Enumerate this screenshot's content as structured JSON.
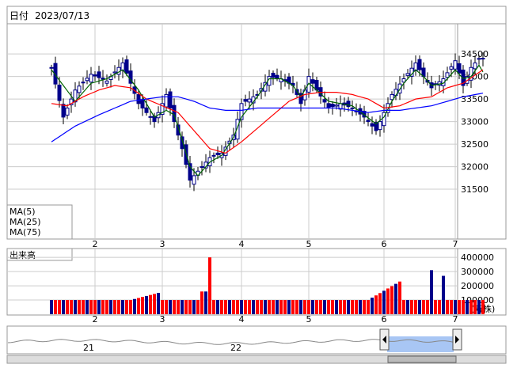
{
  "header": {
    "label": "日付",
    "date": "2023/07/13"
  },
  "colors": {
    "bull": "#ff0000",
    "bear": "#00008b",
    "wick": "#000000",
    "ma5": "#006400",
    "ma25": "#ff0000",
    "ma75": "#0000ff",
    "grid": "#cccccc",
    "volume_up": "#ff0000",
    "volume_down": "#00008b",
    "nav_fill": "#a8c6f4"
  },
  "legend": [
    {
      "label": "MA(5)",
      "color": "#006400"
    },
    {
      "label": "MA(25)",
      "color": "#ff0000"
    },
    {
      "label": "MA(75)",
      "color": "#0000ff"
    }
  ],
  "volume_panel": {
    "title": "出来高",
    "unit": "(万株)"
  },
  "navigator": {
    "labels": [
      "21",
      "22"
    ]
  },
  "chart_data": [
    {
      "type": "candlestick",
      "title": "",
      "y_ticks": [
        31500,
        32000,
        32500,
        33000,
        33500,
        34000,
        34500
      ],
      "ylim": [
        30500,
        35100
      ],
      "x_month_labels": [
        {
          "label": "2",
          "index": 11
        },
        {
          "label": "3",
          "index": 28
        },
        {
          "label": "4",
          "index": 48
        },
        {
          "label": "5",
          "index": 65
        },
        {
          "label": "6",
          "index": 84
        },
        {
          "label": "7",
          "index": 102
        }
      ],
      "anchors": {
        "close": [
          [
            0,
            34200
          ],
          [
            3,
            33100
          ],
          [
            6,
            33700
          ],
          [
            10,
            34050
          ],
          [
            14,
            33900
          ],
          [
            18,
            34300
          ],
          [
            22,
            33400
          ],
          [
            26,
            33000
          ],
          [
            29,
            33600
          ],
          [
            31,
            33000
          ],
          [
            33,
            32400
          ],
          [
            35,
            31700
          ],
          [
            37,
            31900
          ],
          [
            40,
            32200
          ],
          [
            43,
            32300
          ],
          [
            46,
            32700
          ],
          [
            48,
            33400
          ],
          [
            52,
            33600
          ],
          [
            55,
            34000
          ],
          [
            58,
            33950
          ],
          [
            61,
            33800
          ],
          [
            63,
            33400
          ],
          [
            65,
            34000
          ],
          [
            67,
            33700
          ],
          [
            70,
            33300
          ],
          [
            73,
            33400
          ],
          [
            76,
            33300
          ],
          [
            79,
            33100
          ],
          [
            82,
            32800
          ],
          [
            84,
            33200
          ],
          [
            86,
            33600
          ],
          [
            89,
            33950
          ],
          [
            92,
            34300
          ],
          [
            94,
            34000
          ],
          [
            96,
            33750
          ],
          [
            99,
            33950
          ],
          [
            102,
            34350
          ],
          [
            104,
            33800
          ],
          [
            106,
            34200
          ],
          [
            108,
            34400
          ],
          [
            109,
            34400
          ]
        ],
        "ma5": [
          [
            0,
            34150
          ],
          [
            3,
            33800
          ],
          [
            6,
            33450
          ],
          [
            10,
            33850
          ],
          [
            14,
            33950
          ],
          [
            18,
            34150
          ],
          [
            22,
            33700
          ],
          [
            26,
            33100
          ],
          [
            29,
            33250
          ],
          [
            31,
            33150
          ],
          [
            33,
            32600
          ],
          [
            35,
            32000
          ],
          [
            37,
            31800
          ],
          [
            40,
            32100
          ],
          [
            43,
            32250
          ],
          [
            46,
            32650
          ],
          [
            48,
            33100
          ],
          [
            52,
            33550
          ],
          [
            55,
            33950
          ],
          [
            58,
            33950
          ],
          [
            61,
            33800
          ],
          [
            63,
            33550
          ],
          [
            65,
            33850
          ],
          [
            67,
            33700
          ],
          [
            70,
            33450
          ],
          [
            73,
            33400
          ],
          [
            76,
            33350
          ],
          [
            79,
            33150
          ],
          [
            82,
            32950
          ],
          [
            84,
            33100
          ],
          [
            86,
            33450
          ],
          [
            89,
            33850
          ],
          [
            92,
            34150
          ],
          [
            94,
            34000
          ],
          [
            96,
            33800
          ],
          [
            99,
            33850
          ],
          [
            102,
            34150
          ],
          [
            104,
            33950
          ],
          [
            106,
            34000
          ],
          [
            108,
            34250
          ],
          [
            109,
            34100
          ]
        ],
        "ma25": [
          [
            0,
            33400
          ],
          [
            4,
            33350
          ],
          [
            8,
            33550
          ],
          [
            12,
            33700
          ],
          [
            16,
            33800
          ],
          [
            20,
            33750
          ],
          [
            24,
            33500
          ],
          [
            28,
            33350
          ],
          [
            32,
            33200
          ],
          [
            36,
            32800
          ],
          [
            40,
            32400
          ],
          [
            44,
            32300
          ],
          [
            48,
            32550
          ],
          [
            52,
            32850
          ],
          [
            56,
            33150
          ],
          [
            60,
            33450
          ],
          [
            64,
            33600
          ],
          [
            68,
            33650
          ],
          [
            72,
            33650
          ],
          [
            76,
            33600
          ],
          [
            80,
            33500
          ],
          [
            84,
            33300
          ],
          [
            88,
            33350
          ],
          [
            92,
            33500
          ],
          [
            96,
            33550
          ],
          [
            100,
            33750
          ],
          [
            104,
            33850
          ],
          [
            109,
            34150
          ]
        ],
        "ma75": [
          [
            0,
            32550
          ],
          [
            6,
            32900
          ],
          [
            12,
            33150
          ],
          [
            16,
            33300
          ],
          [
            20,
            33450
          ],
          [
            24,
            33500
          ],
          [
            28,
            33550
          ],
          [
            32,
            33550
          ],
          [
            36,
            33450
          ],
          [
            40,
            33300
          ],
          [
            44,
            33250
          ],
          [
            48,
            33250
          ],
          [
            52,
            33300
          ],
          [
            56,
            33300
          ],
          [
            60,
            33300
          ],
          [
            64,
            33300
          ],
          [
            68,
            33300
          ],
          [
            72,
            33300
          ],
          [
            76,
            33250
          ],
          [
            80,
            33200
          ],
          [
            84,
            33250
          ],
          [
            88,
            33250
          ],
          [
            92,
            33300
          ],
          [
            96,
            33350
          ],
          [
            100,
            33450
          ],
          [
            104,
            33550
          ],
          [
            109,
            33630
          ]
        ],
        "volume": [
          [
            0,
            100000
          ],
          [
            10,
            100000
          ],
          [
            20,
            100000
          ],
          [
            27,
            150000
          ],
          [
            28,
            100000
          ],
          [
            37,
            100000
          ],
          [
            38,
            160000
          ],
          [
            39,
            160000
          ],
          [
            40,
            400000
          ],
          [
            41,
            100000
          ],
          [
            50,
            100000
          ],
          [
            80,
            100000
          ],
          [
            88,
            230000
          ],
          [
            89,
            100000
          ],
          [
            95,
            100000
          ],
          [
            96,
            310000
          ],
          [
            97,
            100000
          ],
          [
            98,
            100000
          ],
          [
            99,
            270000
          ],
          [
            100,
            100000
          ],
          [
            109,
            100000
          ]
        ]
      },
      "n_candles": 110
    },
    {
      "type": "bar",
      "title": "出来高",
      "y_ticks": [
        100000,
        200000,
        300000,
        400000
      ],
      "unit": "(万株)"
    }
  ]
}
